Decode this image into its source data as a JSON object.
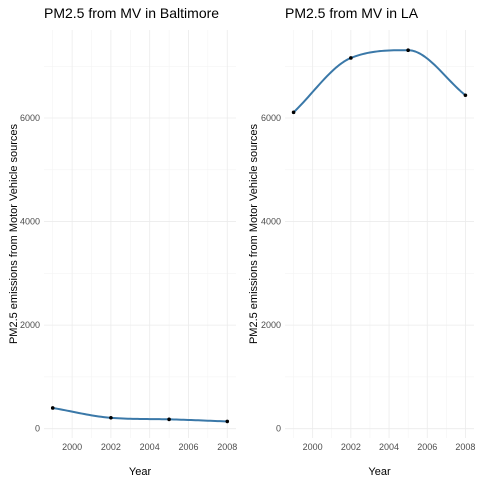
{
  "chart_data": [
    {
      "type": "line",
      "title": "PM2.5 from MV in Baltimore",
      "xlabel": "Year",
      "ylabel": "PM2.5 emissions from Motor Vehicle sources",
      "x": [
        1999,
        2002,
        2005,
        2008
      ],
      "series": [
        {
          "values": [
            400,
            210,
            180,
            140
          ],
          "color": "#3a78a8"
        }
      ],
      "xlim": [
        1998.55,
        2008.45
      ],
      "ylim": [
        -180,
        7700
      ],
      "xticks": [
        2000,
        2002,
        2004,
        2006,
        2008
      ],
      "xtick_labels": [
        "2000",
        "2002",
        "2004",
        "2006",
        "2008"
      ],
      "yticks": [
        0,
        2000,
        4000,
        6000
      ],
      "ytick_labels": [
        "0",
        "2000",
        "4000",
        "6000"
      ],
      "grid": true,
      "smoothed": true,
      "legend": "none"
    },
    {
      "type": "line",
      "title": "PM2.5 from MV in LA",
      "xlabel": "Year",
      "ylabel": "PM2.5 emissions from Motor Vehicle sources",
      "x": [
        1999,
        2002,
        2005,
        2008
      ],
      "series": [
        {
          "values": [
            6110,
            7160,
            7310,
            6440
          ],
          "color": "#3a78a8"
        }
      ],
      "xlim": [
        1998.55,
        2008.45
      ],
      "ylim": [
        -180,
        7700
      ],
      "xticks": [
        2000,
        2002,
        2004,
        2006,
        2008
      ],
      "xtick_labels": [
        "2000",
        "2002",
        "2004",
        "2006",
        "2008"
      ],
      "yticks": [
        0,
        2000,
        4000,
        6000
      ],
      "ytick_labels": [
        "0",
        "2000",
        "4000",
        "6000"
      ],
      "grid": true,
      "smoothed": true,
      "legend": "none"
    }
  ]
}
